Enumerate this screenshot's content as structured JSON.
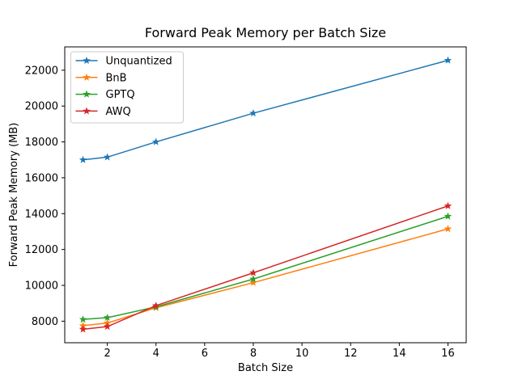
{
  "figure": {
    "title": "Forward Peak Memory per Batch Size",
    "xlabel": "Batch Size",
    "ylabel": "Forward Peak Memory (MB)"
  },
  "chart_data": {
    "type": "line",
    "title": "Forward Peak Memory per Batch Size",
    "xlabel": "Batch Size",
    "ylabel": "Forward Peak Memory (MB)",
    "x": [
      1,
      2,
      4,
      8,
      16
    ],
    "series": [
      {
        "name": "Unquantized",
        "color": "#1f77b4",
        "values": [
          17000,
          17150,
          18000,
          19600,
          22550
        ]
      },
      {
        "name": "BnB",
        "color": "#ff7f0e",
        "values": [
          7750,
          7900,
          8750,
          10150,
          13150
        ]
      },
      {
        "name": "GPTQ",
        "color": "#2ca02c",
        "values": [
          8100,
          8200,
          8800,
          10350,
          13850
        ]
      },
      {
        "name": "AWQ",
        "color": "#d62728",
        "values": [
          7550,
          7700,
          8870,
          10700,
          14430
        ]
      }
    ],
    "marker": "star",
    "line_width": 1.5,
    "xticks": [
      2,
      4,
      6,
      8,
      10,
      12,
      14,
      16
    ],
    "yticks": [
      8000,
      10000,
      12000,
      14000,
      16000,
      18000,
      20000,
      22000
    ],
    "xlim": [
      0.25,
      16.75
    ],
    "ylim": [
      6800,
      23300
    ],
    "grid": false,
    "legend_position": "upper left",
    "colors": {
      "spine": "#000000",
      "legend_border": "#cccccc",
      "legend_background": "#ffffff",
      "plot_background": "#ffffff"
    }
  }
}
